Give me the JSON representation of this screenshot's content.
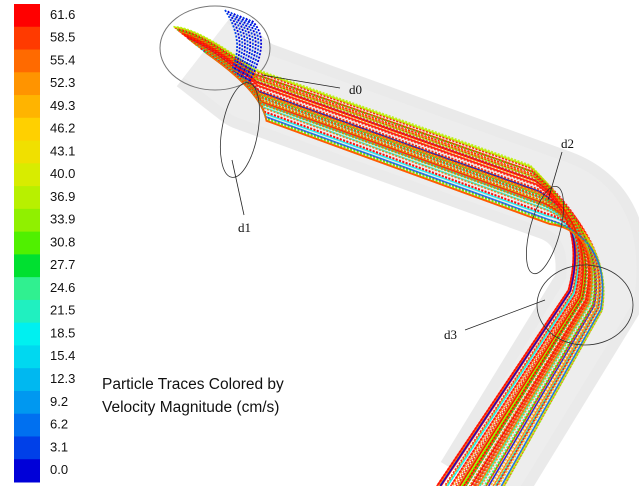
{
  "colorbar": {
    "labels": [
      "61.6",
      "58.5",
      "55.4",
      "52.3",
      "49.3",
      "46.2",
      "43.1",
      "40.0",
      "36.9",
      "33.9",
      "30.8",
      "27.7",
      "24.6",
      "21.5",
      "18.5",
      "15.4",
      "12.3",
      "9.2",
      "6.2",
      "3.1",
      "0.0"
    ]
  },
  "caption": [
    "Particle Traces Colored by",
    "Velocity Magnitude (cm/s)"
  ],
  "annotations": [
    "d0",
    "d1",
    "d2",
    "d3"
  ]
}
